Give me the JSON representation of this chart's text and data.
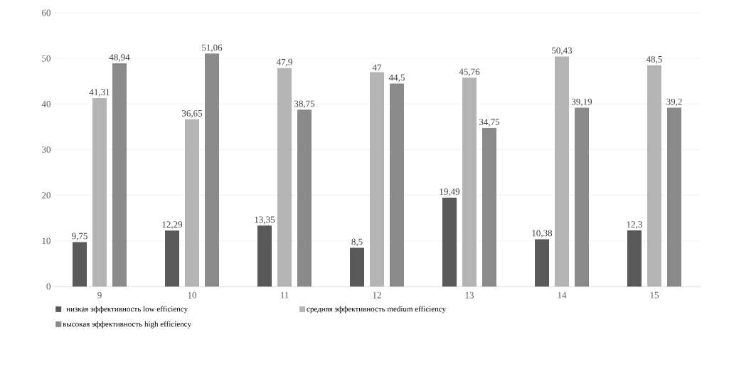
{
  "chart_data": {
    "type": "bar",
    "categories": [
      "9",
      "10",
      "11",
      "12",
      "13",
      "14",
      "15"
    ],
    "series": [
      {
        "name": "низкая эффективность low efficiency",
        "color": "#595959",
        "values": [
          9.75,
          12.29,
          13.35,
          8.5,
          19.49,
          10.38,
          12.3
        ],
        "value_labels": [
          "9,75",
          "12,29",
          "13,35",
          "8,5",
          "19,49",
          "10,38",
          "12,3"
        ]
      },
      {
        "name": "средняя эффективность medium efficiency",
        "color": "#b4b4b4",
        "values": [
          41.31,
          36.65,
          47.9,
          47,
          45.76,
          50.43,
          48.5
        ],
        "value_labels": [
          "41,31",
          "36,65",
          "47,9",
          "47",
          "45,76",
          "50,43",
          "48,5"
        ]
      },
      {
        "name": "высокая эффективность high efficiency",
        "color": "#8a8a8a",
        "values": [
          48.94,
          51.06,
          38.75,
          44.5,
          34.75,
          39.19,
          39.2
        ],
        "value_labels": [
          "48,94",
          "51,06",
          "38,75",
          "44,5",
          "34,75",
          "39,19",
          "39,2"
        ]
      }
    ],
    "ylim": [
      0,
      60
    ],
    "yticks": [
      0,
      10,
      20,
      30,
      40,
      50,
      60
    ],
    "grid": "y",
    "legend": "bottom"
  }
}
